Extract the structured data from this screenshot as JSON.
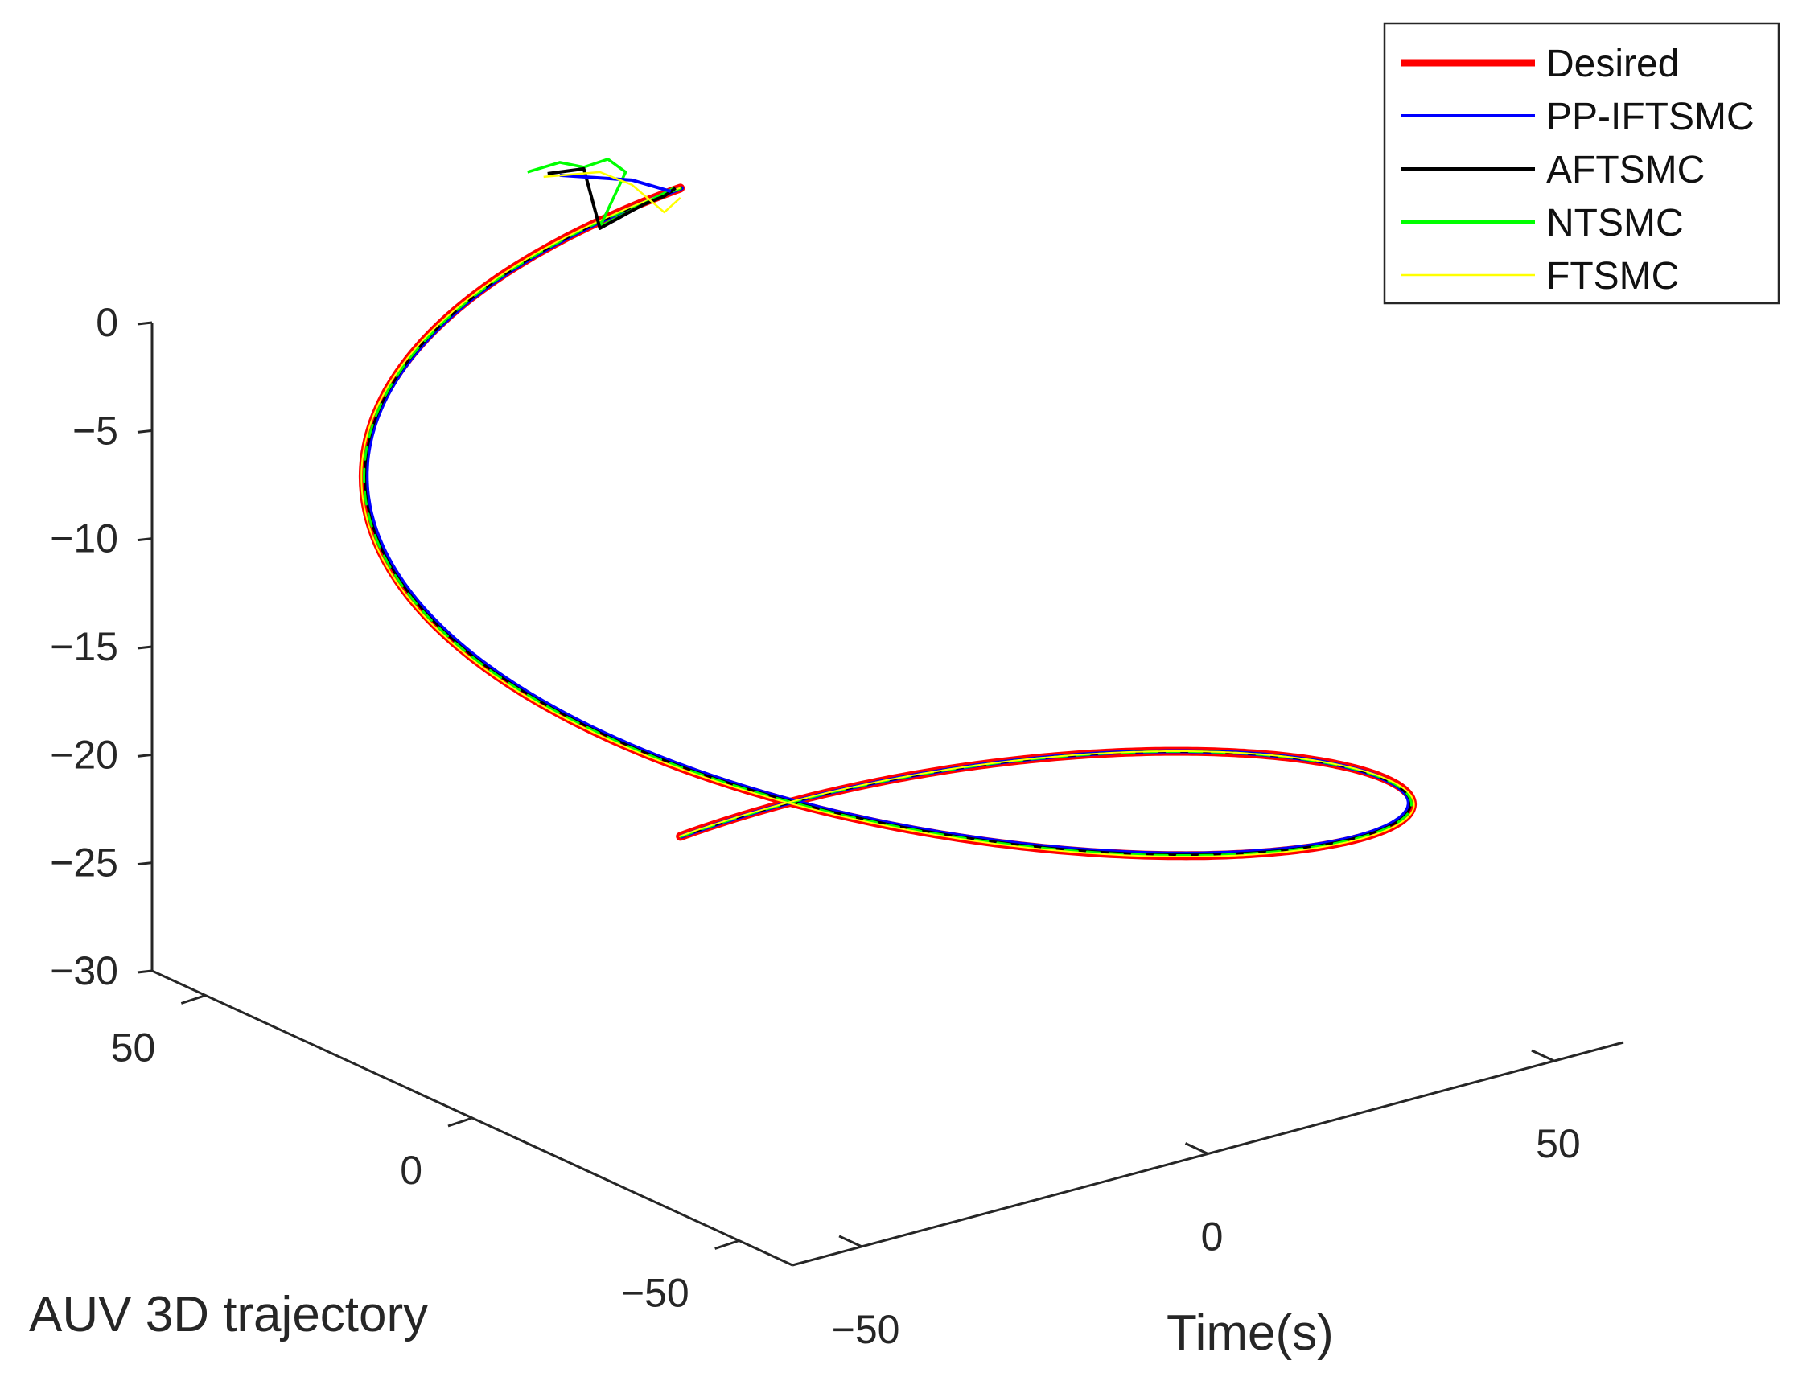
{
  "chart_data": {
    "type": "line",
    "projection": "3d",
    "title": "",
    "xlabel": "AUV 3D trajectory",
    "ylabel": "Time(s)",
    "zlabel": "",
    "xlim": [
      -60,
      60
    ],
    "ylim": [
      -60,
      60
    ],
    "zlim": [
      -30,
      0
    ],
    "x_ticks": [
      "50",
      "0",
      "−50"
    ],
    "y_ticks": [
      "−50",
      "0",
      "50"
    ],
    "z_ticks": [
      "0",
      "−5",
      "−10",
      "−15",
      "−20",
      "−25",
      "−30"
    ],
    "grid": false,
    "legend_position": "top-right",
    "reference": {
      "radius": 60,
      "x0": 0,
      "y0": 0,
      "z0": -30,
      "turns": 1,
      "dz_per_turn": 30
    },
    "series": [
      {
        "name": "Desired",
        "color": "#ff0000",
        "style": "solid"
      },
      {
        "name": "PP-IFTSMC",
        "color": "#0000ff",
        "style": "solid"
      },
      {
        "name": "AFTSMC",
        "color": "#000000",
        "style": "solid"
      },
      {
        "name": "NTSMC",
        "color": "#00ff00",
        "style": "dashed"
      },
      {
        "name": "FTSMC",
        "color": "#ffff00",
        "style": "solid"
      }
    ]
  }
}
